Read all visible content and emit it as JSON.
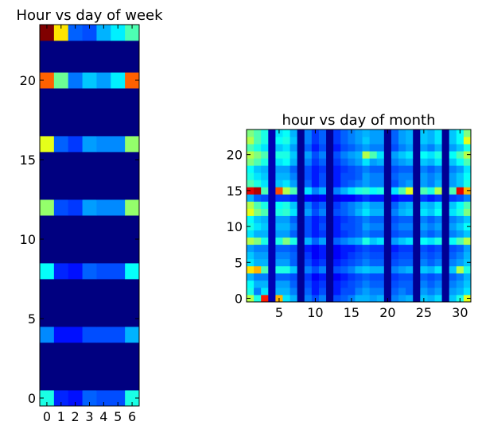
{
  "chart_data": [
    {
      "type": "heatmap",
      "title": "Hour vs day of week",
      "xlabel": "",
      "ylabel": "",
      "xlim": [
        0,
        6
      ],
      "ylim": [
        0,
        23
      ],
      "xticks": [
        0,
        1,
        2,
        3,
        4,
        5,
        6
      ],
      "yticks": [
        0,
        5,
        10,
        15,
        20
      ],
      "x": [
        0,
        1,
        2,
        3,
        4,
        5,
        6
      ],
      "y": [
        0,
        1,
        2,
        3,
        4,
        5,
        6,
        7,
        8,
        9,
        10,
        11,
        12,
        13,
        14,
        15,
        16,
        17,
        18,
        19,
        20,
        21,
        22,
        23
      ],
      "values": [
        [
          0.4,
          0.16,
          0.14,
          0.22,
          0.2,
          0.2,
          0.4
        ],
        [
          0,
          0,
          0,
          0,
          0,
          0,
          0
        ],
        [
          0,
          0,
          0,
          0,
          0,
          0,
          0
        ],
        [
          0,
          0,
          0,
          0,
          0,
          0,
          0
        ],
        [
          0.26,
          0.14,
          0.14,
          0.2,
          0.2,
          0.2,
          0.3
        ],
        [
          0,
          0,
          0,
          0,
          0,
          0,
          0
        ],
        [
          0,
          0,
          0,
          0,
          0,
          0,
          0
        ],
        [
          0,
          0,
          0,
          0,
          0,
          0,
          0
        ],
        [
          0.38,
          0.16,
          0.14,
          0.22,
          0.2,
          0.2,
          0.38
        ],
        [
          0,
          0,
          0,
          0,
          0,
          0,
          0
        ],
        [
          0,
          0,
          0,
          0,
          0,
          0,
          0
        ],
        [
          0,
          0,
          0,
          0,
          0,
          0,
          0
        ],
        [
          0.52,
          0.2,
          0.18,
          0.28,
          0.26,
          0.26,
          0.52
        ],
        [
          0,
          0,
          0,
          0,
          0,
          0,
          0
        ],
        [
          0,
          0,
          0,
          0,
          0,
          0,
          0
        ],
        [
          0,
          0,
          0,
          0,
          0,
          0,
          0
        ],
        [
          0.6,
          0.22,
          0.18,
          0.28,
          0.26,
          0.26,
          0.52
        ],
        [
          0,
          0,
          0,
          0,
          0,
          0,
          0
        ],
        [
          0,
          0,
          0,
          0,
          0,
          0,
          0
        ],
        [
          0,
          0,
          0,
          0,
          0,
          0,
          0
        ],
        [
          0.78,
          0.48,
          0.24,
          0.32,
          0.28,
          0.36,
          0.78
        ],
        [
          0,
          0,
          0,
          0,
          0,
          0,
          0
        ],
        [
          0,
          0,
          0,
          0,
          0,
          0,
          0
        ],
        [
          1.0,
          0.65,
          0.22,
          0.2,
          0.3,
          0.36,
          0.45
        ]
      ]
    },
    {
      "type": "heatmap",
      "title": "hour vs day of month",
      "xlabel": "",
      "ylabel": "",
      "xlim": [
        1,
        31
      ],
      "ylim": [
        0,
        23
      ],
      "xticks": [
        5,
        10,
        15,
        20,
        25,
        30
      ],
      "yticks": [
        0,
        5,
        10,
        15,
        20
      ],
      "x": [
        1,
        2,
        3,
        4,
        5,
        6,
        7,
        8,
        9,
        10,
        11,
        12,
        13,
        14,
        15,
        16,
        17,
        18,
        19,
        20,
        21,
        22,
        23,
        24,
        25,
        26,
        27,
        28,
        29,
        30,
        31
      ],
      "y": [
        0,
        1,
        2,
        3,
        4,
        5,
        6,
        7,
        8,
        9,
        10,
        11,
        12,
        13,
        14,
        15,
        16,
        17,
        18,
        19,
        20,
        21,
        22,
        23
      ],
      "empty_day_columns": [
        4,
        8,
        12,
        20,
        24,
        28
      ],
      "values": [
        [
          0.55,
          0.4,
          0.85,
          0.05,
          0.7,
          0.35,
          0.3,
          0.02,
          0.25,
          0.2,
          0.25,
          0.02,
          0.2,
          0.22,
          0.25,
          0.3,
          0.3,
          0.28,
          0.3,
          0.02,
          0.25,
          0.28,
          0.3,
          0.02,
          0.32,
          0.3,
          0.34,
          0.02,
          0.32,
          0.4,
          0.6
        ],
        [
          0.4,
          0.25,
          0.35,
          0.05,
          0.3,
          0.3,
          0.25,
          0.02,
          0.22,
          0.15,
          0.2,
          0.02,
          0.15,
          0.2,
          0.2,
          0.25,
          0.28,
          0.25,
          0.25,
          0.02,
          0.22,
          0.25,
          0.22,
          0.02,
          0.28,
          0.25,
          0.28,
          0.02,
          0.28,
          0.3,
          0.35
        ],
        [
          0.38,
          0.3,
          0.3,
          0.05,
          0.28,
          0.28,
          0.22,
          0.02,
          0.2,
          0.15,
          0.18,
          0.02,
          0.15,
          0.18,
          0.2,
          0.22,
          0.25,
          0.22,
          0.22,
          0.02,
          0.2,
          0.22,
          0.22,
          0.02,
          0.25,
          0.22,
          0.25,
          0.02,
          0.25,
          0.28,
          0.32
        ],
        [
          0.3,
          0.25,
          0.25,
          0.05,
          0.22,
          0.22,
          0.2,
          0.02,
          0.18,
          0.12,
          0.15,
          0.02,
          0.12,
          0.15,
          0.18,
          0.2,
          0.22,
          0.2,
          0.2,
          0.02,
          0.18,
          0.2,
          0.2,
          0.02,
          0.22,
          0.2,
          0.22,
          0.02,
          0.22,
          0.25,
          0.3
        ],
        [
          0.65,
          0.7,
          0.45,
          0.05,
          0.4,
          0.4,
          0.32,
          0.02,
          0.25,
          0.2,
          0.25,
          0.02,
          0.2,
          0.22,
          0.25,
          0.3,
          0.32,
          0.3,
          0.3,
          0.02,
          0.25,
          0.28,
          0.3,
          0.02,
          0.32,
          0.3,
          0.35,
          0.02,
          0.32,
          0.55,
          0.4
        ],
        [
          0.35,
          0.3,
          0.3,
          0.05,
          0.28,
          0.28,
          0.22,
          0.02,
          0.2,
          0.15,
          0.18,
          0.02,
          0.15,
          0.18,
          0.2,
          0.22,
          0.25,
          0.22,
          0.22,
          0.02,
          0.2,
          0.22,
          0.22,
          0.02,
          0.25,
          0.22,
          0.25,
          0.02,
          0.25,
          0.28,
          0.32
        ],
        [
          0.32,
          0.28,
          0.28,
          0.05,
          0.25,
          0.25,
          0.22,
          0.02,
          0.18,
          0.12,
          0.15,
          0.02,
          0.12,
          0.15,
          0.18,
          0.2,
          0.22,
          0.2,
          0.2,
          0.02,
          0.18,
          0.2,
          0.2,
          0.02,
          0.22,
          0.2,
          0.22,
          0.02,
          0.22,
          0.25,
          0.3
        ],
        [
          0.28,
          0.25,
          0.25,
          0.05,
          0.22,
          0.22,
          0.2,
          0.02,
          0.15,
          0.12,
          0.15,
          0.02,
          0.12,
          0.15,
          0.15,
          0.18,
          0.2,
          0.18,
          0.18,
          0.02,
          0.15,
          0.18,
          0.18,
          0.02,
          0.2,
          0.18,
          0.2,
          0.02,
          0.2,
          0.22,
          0.28
        ],
        [
          0.55,
          0.5,
          0.4,
          0.05,
          0.4,
          0.5,
          0.4,
          0.02,
          0.3,
          0.22,
          0.28,
          0.02,
          0.22,
          0.25,
          0.28,
          0.3,
          0.4,
          0.32,
          0.35,
          0.02,
          0.28,
          0.32,
          0.35,
          0.02,
          0.38,
          0.35,
          0.4,
          0.02,
          0.38,
          0.45,
          0.55
        ],
        [
          0.35,
          0.3,
          0.3,
          0.05,
          0.28,
          0.28,
          0.22,
          0.02,
          0.2,
          0.15,
          0.18,
          0.02,
          0.15,
          0.18,
          0.2,
          0.22,
          0.25,
          0.22,
          0.22,
          0.02,
          0.2,
          0.22,
          0.22,
          0.02,
          0.25,
          0.22,
          0.25,
          0.02,
          0.25,
          0.28,
          0.32
        ],
        [
          0.4,
          0.35,
          0.32,
          0.05,
          0.3,
          0.3,
          0.25,
          0.02,
          0.2,
          0.15,
          0.2,
          0.02,
          0.15,
          0.2,
          0.2,
          0.22,
          0.28,
          0.25,
          0.25,
          0.02,
          0.22,
          0.25,
          0.25,
          0.02,
          0.28,
          0.25,
          0.28,
          0.02,
          0.28,
          0.32,
          0.38
        ],
        [
          0.38,
          0.32,
          0.3,
          0.05,
          0.28,
          0.28,
          0.22,
          0.02,
          0.2,
          0.15,
          0.18,
          0.02,
          0.15,
          0.18,
          0.2,
          0.22,
          0.25,
          0.22,
          0.22,
          0.02,
          0.2,
          0.22,
          0.22,
          0.02,
          0.25,
          0.22,
          0.25,
          0.02,
          0.25,
          0.28,
          0.32
        ],
        [
          0.6,
          0.5,
          0.45,
          0.05,
          0.4,
          0.42,
          0.35,
          0.02,
          0.28,
          0.2,
          0.25,
          0.02,
          0.2,
          0.22,
          0.25,
          0.3,
          0.35,
          0.3,
          0.3,
          0.02,
          0.25,
          0.3,
          0.32,
          0.02,
          0.35,
          0.32,
          0.38,
          0.02,
          0.35,
          0.4,
          0.5
        ],
        [
          0.55,
          0.45,
          0.4,
          0.05,
          0.38,
          0.4,
          0.32,
          0.02,
          0.25,
          0.18,
          0.22,
          0.02,
          0.18,
          0.22,
          0.25,
          0.28,
          0.32,
          0.28,
          0.28,
          0.02,
          0.22,
          0.28,
          0.3,
          0.02,
          0.32,
          0.3,
          0.35,
          0.02,
          0.32,
          0.38,
          0.45
        ],
        [
          0.3,
          0.22,
          0.2,
          0.05,
          0.18,
          0.18,
          0.15,
          0.02,
          0.12,
          0.1,
          0.12,
          0.02,
          0.1,
          0.12,
          0.12,
          0.15,
          0.18,
          0.15,
          0.15,
          0.02,
          0.12,
          0.15,
          0.15,
          0.02,
          0.18,
          0.15,
          0.18,
          0.02,
          0.18,
          0.2,
          0.25
        ],
        [
          0.9,
          0.95,
          0.45,
          0.05,
          0.8,
          0.55,
          0.45,
          0.02,
          0.35,
          0.25,
          0.3,
          0.02,
          0.25,
          0.3,
          0.35,
          0.4,
          0.42,
          0.38,
          0.4,
          0.02,
          0.35,
          0.45,
          0.6,
          0.02,
          0.45,
          0.4,
          0.55,
          0.02,
          0.45,
          0.9,
          0.7
        ],
        [
          0.45,
          0.4,
          0.35,
          0.05,
          0.32,
          0.35,
          0.28,
          0.02,
          0.22,
          0.15,
          0.2,
          0.02,
          0.15,
          0.2,
          0.22,
          0.25,
          0.28,
          0.25,
          0.25,
          0.02,
          0.2,
          0.25,
          0.28,
          0.02,
          0.28,
          0.25,
          0.3,
          0.02,
          0.28,
          0.32,
          0.4
        ],
        [
          0.4,
          0.35,
          0.32,
          0.05,
          0.3,
          0.3,
          0.25,
          0.02,
          0.2,
          0.15,
          0.2,
          0.02,
          0.15,
          0.2,
          0.2,
          0.22,
          0.28,
          0.25,
          0.25,
          0.02,
          0.22,
          0.25,
          0.25,
          0.02,
          0.28,
          0.25,
          0.28,
          0.02,
          0.28,
          0.32,
          0.38
        ],
        [
          0.38,
          0.32,
          0.3,
          0.05,
          0.28,
          0.28,
          0.22,
          0.02,
          0.2,
          0.15,
          0.18,
          0.02,
          0.15,
          0.18,
          0.2,
          0.22,
          0.25,
          0.22,
          0.22,
          0.02,
          0.2,
          0.22,
          0.22,
          0.02,
          0.25,
          0.22,
          0.25,
          0.02,
          0.25,
          0.28,
          0.35
        ],
        [
          0.5,
          0.45,
          0.4,
          0.05,
          0.35,
          0.38,
          0.3,
          0.02,
          0.25,
          0.18,
          0.22,
          0.02,
          0.18,
          0.22,
          0.25,
          0.28,
          0.35,
          0.28,
          0.3,
          0.02,
          0.25,
          0.28,
          0.3,
          0.02,
          0.32,
          0.3,
          0.35,
          0.02,
          0.32,
          0.38,
          0.45
        ],
        [
          0.55,
          0.5,
          0.45,
          0.05,
          0.4,
          0.4,
          0.32,
          0.02,
          0.28,
          0.2,
          0.25,
          0.02,
          0.2,
          0.25,
          0.28,
          0.3,
          0.55,
          0.45,
          0.35,
          0.02,
          0.28,
          0.32,
          0.35,
          0.02,
          0.38,
          0.35,
          0.4,
          0.02,
          0.38,
          0.45,
          0.55
        ],
        [
          0.45,
          0.4,
          0.35,
          0.05,
          0.32,
          0.35,
          0.28,
          0.02,
          0.22,
          0.15,
          0.2,
          0.02,
          0.15,
          0.2,
          0.22,
          0.25,
          0.28,
          0.25,
          0.25,
          0.02,
          0.2,
          0.25,
          0.28,
          0.02,
          0.28,
          0.25,
          0.3,
          0.02,
          0.28,
          0.32,
          0.4
        ],
        [
          0.55,
          0.45,
          0.4,
          0.05,
          0.38,
          0.4,
          0.32,
          0.02,
          0.25,
          0.18,
          0.22,
          0.02,
          0.18,
          0.22,
          0.25,
          0.28,
          0.32,
          0.28,
          0.28,
          0.02,
          0.22,
          0.28,
          0.3,
          0.02,
          0.32,
          0.3,
          0.35,
          0.02,
          0.32,
          0.38,
          0.6
        ],
        [
          0.5,
          0.45,
          0.4,
          0.05,
          0.35,
          0.38,
          0.3,
          0.02,
          0.25,
          0.18,
          0.22,
          0.02,
          0.18,
          0.22,
          0.25,
          0.28,
          0.3,
          0.28,
          0.28,
          0.02,
          0.22,
          0.28,
          0.3,
          0.02,
          0.32,
          0.3,
          0.35,
          0.02,
          0.32,
          0.38,
          0.5
        ]
      ]
    }
  ]
}
